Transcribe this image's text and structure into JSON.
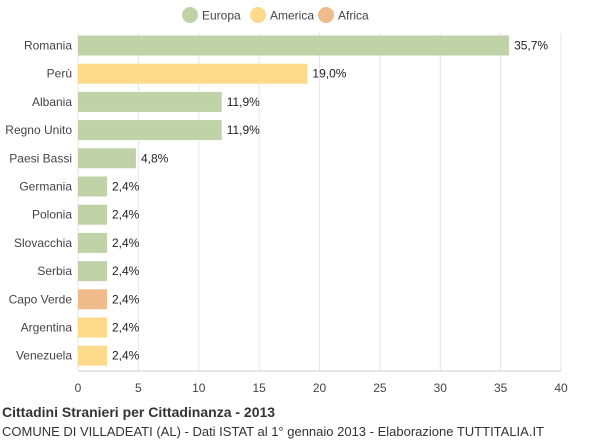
{
  "chart_data": {
    "type": "bar",
    "orientation": "horizontal",
    "categories": [
      "Romania",
      "Perù",
      "Albania",
      "Regno Unito",
      "Paesi Bassi",
      "Germania",
      "Polonia",
      "Slovacchia",
      "Serbia",
      "Capo Verde",
      "Argentina",
      "Venezuela"
    ],
    "values": [
      35.7,
      19.0,
      11.9,
      11.9,
      4.8,
      2.4,
      2.4,
      2.4,
      2.4,
      2.4,
      2.4,
      2.4
    ],
    "value_labels": [
      "35,7%",
      "19,0%",
      "11,9%",
      "11,9%",
      "4,8%",
      "2,4%",
      "2,4%",
      "2,4%",
      "2,4%",
      "2,4%",
      "2,4%",
      "2,4%"
    ],
    "groups": [
      "Europa",
      "America",
      "Europa",
      "Europa",
      "Europa",
      "Europa",
      "Europa",
      "Europa",
      "Europa",
      "Africa",
      "America",
      "America"
    ],
    "legend": [
      {
        "name": "Europa",
        "color": "#c0d2a8"
      },
      {
        "name": "America",
        "color": "#fdd98a"
      },
      {
        "name": "Africa",
        "color": "#f0bb8a"
      }
    ],
    "legend_position": "top-center",
    "xlim": [
      0,
      40
    ],
    "xticks": [
      0,
      5,
      10,
      15,
      20,
      25,
      30,
      35,
      40
    ],
    "grid": true,
    "title": "Cittadini Stranieri per Cittadinanza - 2013",
    "subtitle": "COMUNE DI VILLADEATI (AL) - Dati ISTAT al 1° gennaio 2013 - Elaborazione TUTTITALIA.IT"
  }
}
